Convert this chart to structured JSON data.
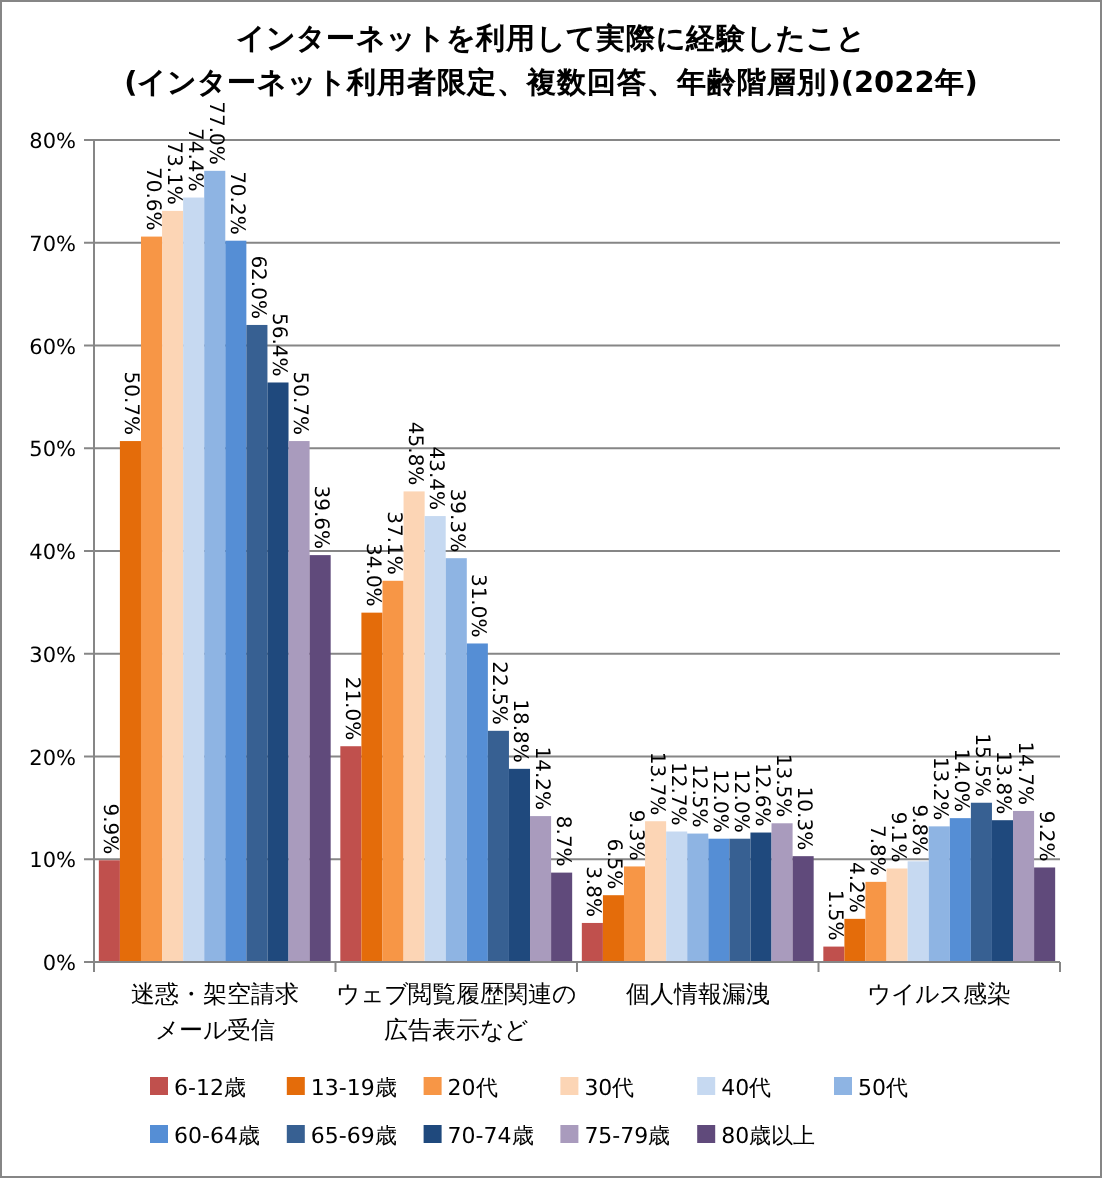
{
  "chart_data": {
    "type": "bar",
    "title": "インターネットを利用して実際に経験したこと",
    "subtitle": "(インターネット利用者限定、複数回答、年齢階層別)(2022年)",
    "categories": [
      "迷惑・架空請求メール受信",
      "ウェブ閲覧履歴関連の広告表示など",
      "個人情報漏洩",
      "ウイルス感染"
    ],
    "series": [
      {
        "name": "6-12歳",
        "color": "#c0504d",
        "values": [
          9.9,
          21.0,
          3.8,
          1.5
        ],
        "value_labels": [
          "9.9%",
          "21.0%",
          "3.8%",
          "1.5%"
        ]
      },
      {
        "name": "13-19歳",
        "color": "#e46c0a",
        "values": [
          50.7,
          34.0,
          6.5,
          4.2
        ],
        "value_labels": [
          "50.7%",
          "34.0%",
          "6.5%",
          "4.2%"
        ]
      },
      {
        "name": "20代",
        "color": "#f79646",
        "values": [
          70.6,
          37.1,
          9.3,
          7.8
        ],
        "value_labels": [
          "70.6%",
          "37.1%",
          "9.3%",
          "7.8%"
        ]
      },
      {
        "name": "30代",
        "color": "#fcd5b5",
        "values": [
          73.1,
          45.8,
          13.7,
          9.1
        ],
        "value_labels": [
          "73.1%",
          "45.8%",
          "13.7%",
          "9.1%"
        ]
      },
      {
        "name": "40代",
        "color": "#c6d9f1",
        "values": [
          74.4,
          43.4,
          12.7,
          9.8
        ],
        "value_labels": [
          "74.4%",
          "43.4%",
          "12.7%",
          "9.8%"
        ]
      },
      {
        "name": "50代",
        "color": "#8eb4e3",
        "values": [
          77.0,
          39.3,
          12.5,
          13.2
        ],
        "value_labels": [
          "77.0%",
          "39.3%",
          "12.5%",
          "13.2%"
        ]
      },
      {
        "name": "60-64歳",
        "color": "#558ed5",
        "values": [
          70.2,
          31.0,
          12.0,
          14.0
        ],
        "value_labels": [
          "70.2%",
          "31.0%",
          "12.0%",
          "14.0%"
        ]
      },
      {
        "name": "65-69歳",
        "color": "#376092",
        "values": [
          62.0,
          22.5,
          12.0,
          15.5
        ],
        "value_labels": [
          "62.0%",
          "22.5%",
          "12.0%",
          "15.5%"
        ]
      },
      {
        "name": "70-74歳",
        "color": "#1f497d",
        "values": [
          56.4,
          18.8,
          12.6,
          13.8
        ],
        "value_labels": [
          "56.4%",
          "18.8%",
          "12.6%",
          "13.8%"
        ]
      },
      {
        "name": "75-79歳",
        "color": "#a99bbd",
        "values": [
          50.7,
          14.2,
          13.5,
          14.7
        ],
        "value_labels": [
          "50.7%",
          "14.2%",
          "13.5%",
          "14.7%"
        ]
      },
      {
        "name": "80歳以上",
        "color": "#604a7b",
        "values": [
          39.6,
          8.7,
          10.3,
          9.2
        ],
        "value_labels": [
          "39.6%",
          "8.7%",
          "10.3%",
          "9.2%"
        ]
      }
    ],
    "ylim": [
      0,
      80
    ],
    "yticks": [
      {
        "value": 0,
        "label": "0%"
      },
      {
        "value": 10,
        "label": "10%"
      },
      {
        "value": 20,
        "label": "20%"
      },
      {
        "value": 30,
        "label": "30%"
      },
      {
        "value": 40,
        "label": "40%"
      },
      {
        "value": 50,
        "label": "50%"
      },
      {
        "value": 60,
        "label": "60%"
      },
      {
        "value": 70,
        "label": "70%"
      },
      {
        "value": 80,
        "label": "80%"
      }
    ],
    "grid": "y",
    "legend": "bottom"
  }
}
